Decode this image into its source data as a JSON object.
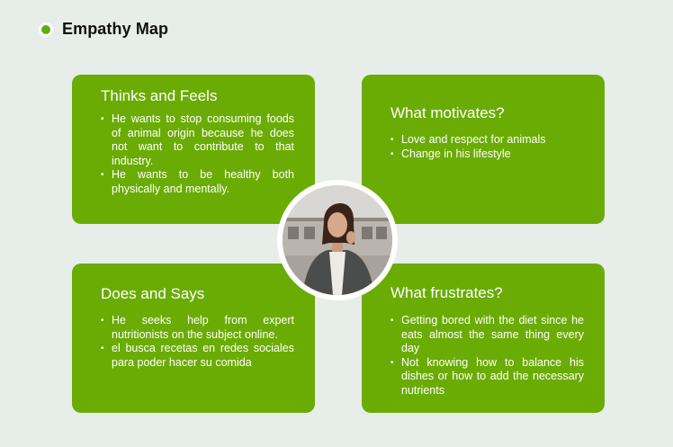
{
  "header": {
    "title": "Empathy Map"
  },
  "quadrants": {
    "thinks_feels": {
      "title": "Thinks and Feels",
      "items": [
        "He wants to stop consuming foods of animal origin because he does not want to contribute to that industry.",
        "He wants to be healthy both physically and mentally."
      ]
    },
    "motivates": {
      "title": "What motivates?",
      "items": [
        "Love and respect for animals",
        "Change in his lifestyle"
      ]
    },
    "does_says": {
      "title": "Does and Says",
      "items": [
        "He seeks help from expert nutritionists on the subject online.",
        "el busca recetas en redes sociales para poder hacer su comida"
      ]
    },
    "frustrates": {
      "title": "What frustrates?",
      "items": [
        "Getting bored with the diet since he eats almost the same thing every day",
        "Not knowing how to balance his dishes or how to add the necessary nutrients"
      ]
    }
  },
  "colors": {
    "card": "#6aac04",
    "accent": "#5fae0a",
    "background": "#e7eee9"
  }
}
